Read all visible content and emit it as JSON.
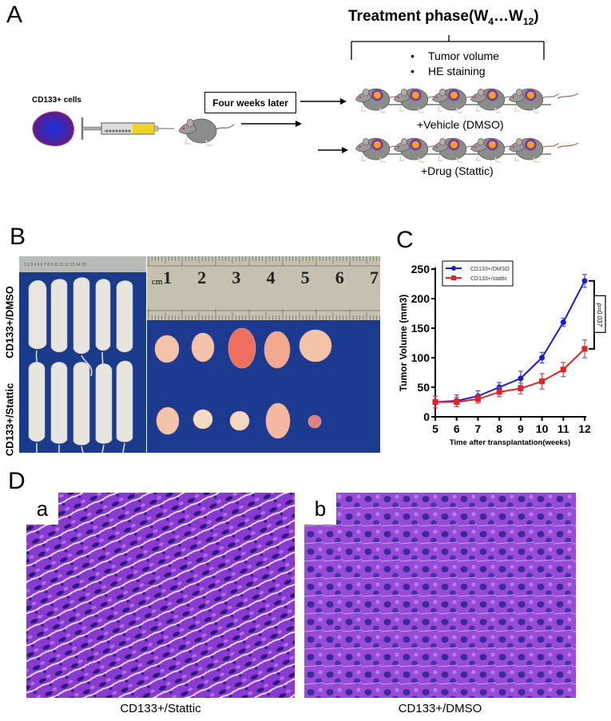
{
  "panels": {
    "A": {
      "letter": "A",
      "title_main": "Treatment phase(W",
      "title_sub1": "4",
      "title_mid": "…W",
      "title_sub2": "12",
      "title_end": ")",
      "bullets": [
        "Tumor volume",
        "HE staining"
      ],
      "cells_label": "CD133+ cells",
      "box_label": "Four weeks later",
      "group1_label": "+Vehicle (DMSO)",
      "group2_label": "+Drug (Stattic)",
      "mice_per_group": 5,
      "colors": {
        "cell": "#5a1a8a",
        "cell_core": "#2a2ad0",
        "syringe_fluid": "#f0d020",
        "tumor": "#f0a020",
        "tumor_ring": "#7a3aa0",
        "mouse": "#8a8a8a"
      }
    },
    "B": {
      "letter": "B",
      "row_labels": [
        "CD133+/DMSO",
        "CD133+/Stattic"
      ],
      "ruler_numbers": [
        "1",
        "2",
        "3",
        "4",
        "5",
        "6",
        "7"
      ],
      "ruler_unit": "cm",
      "colors": {
        "background": "#1a3a8a",
        "tumor": "#f2c0a8",
        "mouse": "#e6e2dc",
        "ruler": "#c8c2b4"
      }
    },
    "C": {
      "letter": "C",
      "pvalue": "p=0.037"
    },
    "D": {
      "letter": "D",
      "images": [
        {
          "sub": "a",
          "caption": "CD133+/Stattic"
        },
        {
          "sub": "b",
          "caption": "CD133+/DMSO"
        }
      ]
    }
  },
  "chart_data": {
    "type": "line",
    "title": "",
    "xlabel": "Time after transplantation(weeks)",
    "ylabel": "Tumor Volume (mm3)",
    "x": [
      5,
      6,
      7,
      8,
      9,
      10,
      11,
      12
    ],
    "xlim": [
      5,
      12
    ],
    "ylim": [
      0,
      250
    ],
    "yticks": [
      0,
      50,
      100,
      150,
      200,
      250
    ],
    "xticks": [
      5,
      6,
      7,
      8,
      9,
      10,
      11,
      12
    ],
    "grid": false,
    "legend_position": "upper left",
    "series": [
      {
        "name": "CD133+/DMSO",
        "color": "#1a1adc",
        "marker": "circle",
        "values": [
          25,
          27,
          35,
          50,
          65,
          100,
          160,
          230
        ],
        "errors": [
          10,
          10,
          9,
          8,
          12,
          9,
          7,
          11
        ]
      },
      {
        "name": "CD133+/stattic",
        "color": "#e82020",
        "marker": "square",
        "values": [
          25,
          25,
          30,
          42,
          48,
          60,
          80,
          115
        ],
        "errors": [
          10,
          8,
          7,
          8,
          9,
          13,
          12,
          15
        ]
      }
    ],
    "annotations": [
      {
        "type": "bracket",
        "x": 12,
        "y_from": 230,
        "y_to": 115,
        "text": "p=0.037"
      }
    ]
  }
}
